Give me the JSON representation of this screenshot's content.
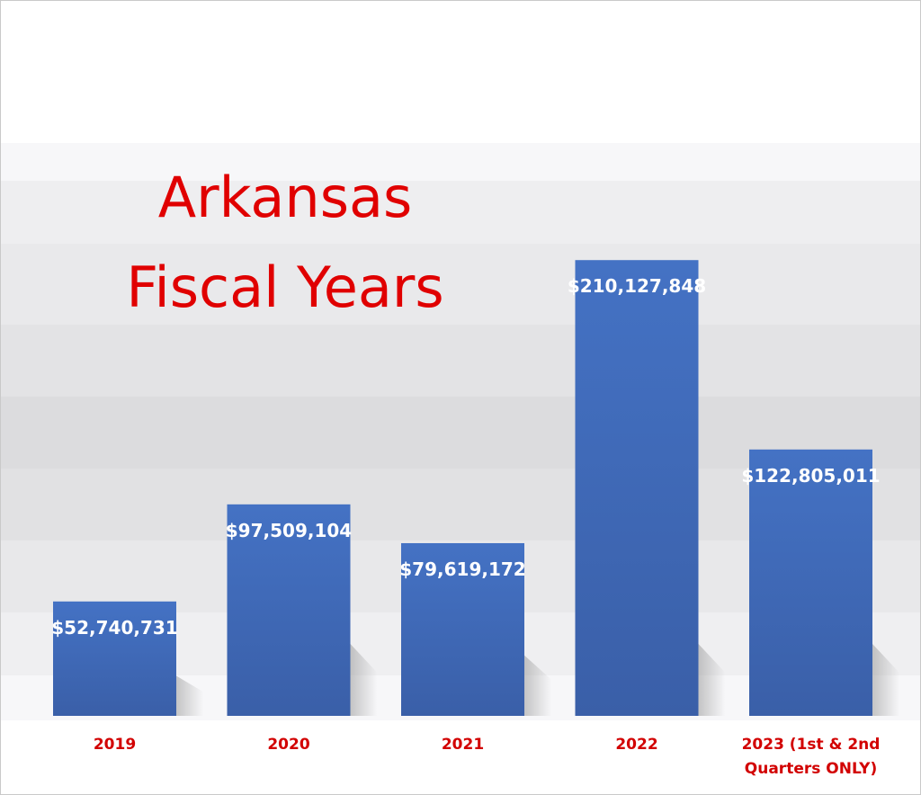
{
  "chart_data": {
    "type": "bar",
    "title_lines": [
      "Arkansas",
      "Fiscal Years"
    ],
    "categories": [
      [
        "2019"
      ],
      [
        "2020"
      ],
      [
        "2021"
      ],
      [
        "2022"
      ],
      [
        "2023 (1st & 2nd",
        "Quarters ONLY)"
      ]
    ],
    "values": [
      52740731,
      97509104,
      79619172,
      210127848,
      122805011
    ],
    "value_labels": [
      "$52,740,731",
      "$97,509,104",
      "$79,619,172",
      "$210,127,848",
      "$122,805,011"
    ],
    "ylim": [
      0,
      235000000
    ],
    "grid": false,
    "legend": "none",
    "colors": {
      "bar_top": "#4472c4",
      "bar_bottom": "#3a5fa8",
      "title": "#e00000",
      "category_label": "#d20000",
      "value_label": "#ffffff"
    }
  }
}
